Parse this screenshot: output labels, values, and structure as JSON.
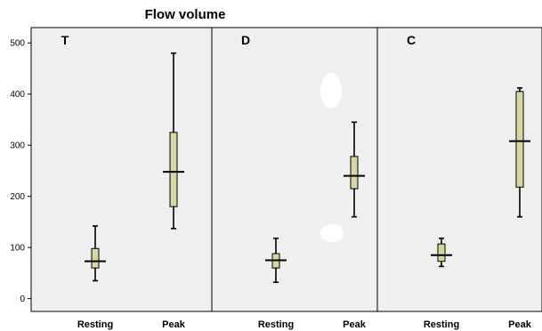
{
  "chart_data": {
    "type": "boxplot",
    "title": "Flow volume",
    "xlabel": "",
    "ylabel": "",
    "ylim": [
      -25,
      530
    ],
    "yticks": [
      0,
      100,
      200,
      300,
      400,
      500
    ],
    "ytick_labels": [
      "0",
      "100",
      "200",
      "300",
      "400",
      "500"
    ],
    "categories": [
      "Resting",
      "Peak"
    ],
    "panels": [
      {
        "label": "T",
        "boxes": [
          {
            "category": "Resting",
            "min": 35,
            "q1": 60,
            "median": 73,
            "q3": 98,
            "max": 142
          },
          {
            "category": "Peak",
            "min": 137,
            "q1": 180,
            "median": 248,
            "q3": 325,
            "max": 480
          }
        ]
      },
      {
        "label": "D",
        "boxes": [
          {
            "category": "Resting",
            "min": 32,
            "q1": 60,
            "median": 75,
            "q3": 88,
            "max": 118
          },
          {
            "category": "Peak",
            "min": 160,
            "q1": 215,
            "median": 240,
            "q3": 278,
            "max": 345
          }
        ]
      },
      {
        "label": "C",
        "boxes": [
          {
            "category": "Resting",
            "min": 63,
            "q1": 73,
            "median": 85,
            "q3": 107,
            "max": 118
          },
          {
            "category": "Peak",
            "min": 160,
            "q1": 218,
            "median": 308,
            "q3": 405,
            "max": 412
          }
        ]
      }
    ],
    "grid": false,
    "colors": {
      "panel_bg": "#efefef",
      "box_fill": "#d8d6a2",
      "line": "#000000"
    }
  }
}
